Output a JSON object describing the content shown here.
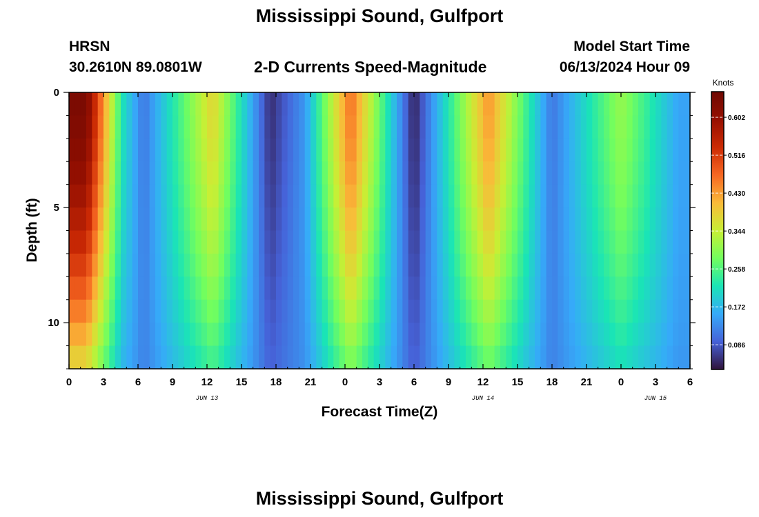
{
  "header": {
    "title": "Mississippi Sound, Gulfport",
    "station_id": "HRSN",
    "station_coords": "30.2610N  89.0801W",
    "subtitle": "2-D Currents Speed-Magnitude",
    "model_label": "Model Start Time",
    "model_value": "06/13/2024 Hour 09"
  },
  "footer": {
    "title": "Mississippi Sound, Gulfport"
  },
  "chart_data": {
    "type": "heatmap",
    "title": "2-D Currents Speed-Magnitude",
    "xlabel": "Forecast Time(Z)",
    "ylabel": "Depth (ft)",
    "x_start_hour": 0,
    "x_end_hour": 54,
    "x_ticks": [
      {
        "hour": 0,
        "label": "0"
      },
      {
        "hour": 3,
        "label": "3"
      },
      {
        "hour": 6,
        "label": "6"
      },
      {
        "hour": 9,
        "label": "9"
      },
      {
        "hour": 12,
        "label": "12"
      },
      {
        "hour": 15,
        "label": "15"
      },
      {
        "hour": 18,
        "label": "18"
      },
      {
        "hour": 21,
        "label": "21"
      },
      {
        "hour": 24,
        "label": "0"
      },
      {
        "hour": 27,
        "label": "3"
      },
      {
        "hour": 30,
        "label": "6"
      },
      {
        "hour": 33,
        "label": "9"
      },
      {
        "hour": 36,
        "label": "12"
      },
      {
        "hour": 39,
        "label": "15"
      },
      {
        "hour": 42,
        "label": "18"
      },
      {
        "hour": 45,
        "label": "21"
      },
      {
        "hour": 48,
        "label": "0"
      },
      {
        "hour": 51,
        "label": "3"
      },
      {
        "hour": 54,
        "label": "6"
      }
    ],
    "date_labels": [
      {
        "hour": 12,
        "label": "JUN 13"
      },
      {
        "hour": 36,
        "label": "JUN 14"
      },
      {
        "hour": 51,
        "label": "JUN 15"
      }
    ],
    "y_range": [
      0,
      12
    ],
    "y_ticks": [
      {
        "depth": 0,
        "label": "0"
      },
      {
        "depth": 5,
        "label": "5"
      },
      {
        "depth": 10,
        "label": "10"
      }
    ],
    "depth_levels": [
      0,
      1,
      2,
      3,
      4,
      5,
      6,
      7,
      8,
      9,
      10,
      11
    ],
    "peaks": [
      {
        "hour": 1.5,
        "speed": 0.64
      },
      {
        "hour": 4.6,
        "speed": 0.22
      },
      {
        "hour": 6.5,
        "speed": 0.11
      },
      {
        "hour": 12.5,
        "speed": 0.38
      },
      {
        "hour": 17.5,
        "speed": 0.05
      },
      {
        "hour": 20.5,
        "speed": 0.14
      },
      {
        "hour": 24.5,
        "speed": 0.47
      },
      {
        "hour": 30,
        "speed": 0.04
      },
      {
        "hour": 36.5,
        "speed": 0.44
      },
      {
        "hour": 42,
        "speed": 0.11
      },
      {
        "hour": 48,
        "speed": 0.31
      },
      {
        "hour": 53,
        "speed": 0.15
      }
    ],
    "colorbar": {
      "unit": "Knots",
      "min": 0.03,
      "max": 0.66,
      "ticks": [
        "0.086",
        "0.172",
        "0.258",
        "0.344",
        "0.430",
        "0.516",
        "0.602"
      ]
    }
  }
}
